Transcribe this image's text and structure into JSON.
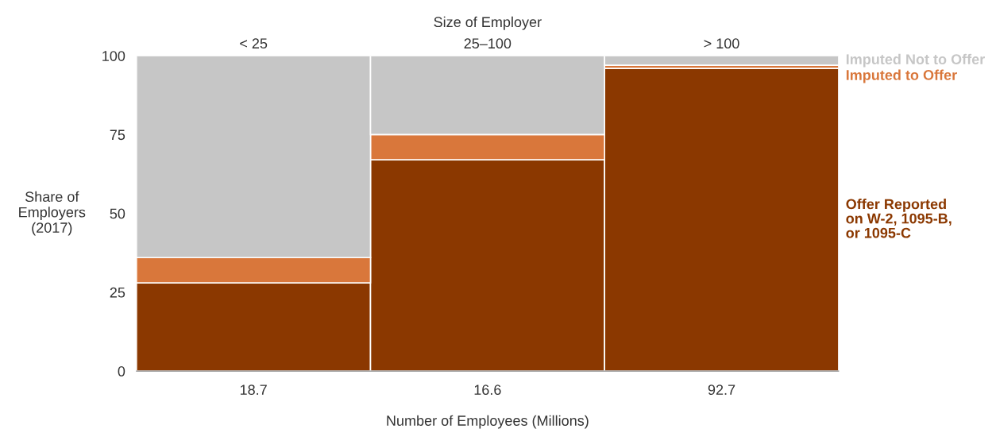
{
  "chart_data": {
    "type": "bar",
    "stacked": true,
    "x2label": "Size of Employer",
    "categories": [
      "< 25",
      "25–100",
      "> 100"
    ],
    "xlabel": "Number of Employees (Millions)",
    "ylabel": "Share of\nEmployers\n(2017)",
    "annotations": [
      "18.7",
      "16.6",
      "92.7"
    ],
    "ylim": [
      0,
      100
    ],
    "yticks": [
      0,
      25,
      50,
      75,
      100
    ],
    "series": [
      {
        "name": "Offer Reported\non W-2, 1095-B,\nor 1095-C",
        "color": "#8b3800",
        "values": [
          28,
          67,
          96
        ]
      },
      {
        "name": "Imputed to Offer",
        "color": "#d9773b",
        "values": [
          8,
          8,
          1
        ]
      },
      {
        "name": "Imputed Not to Offer",
        "color": "#c6c6c6",
        "values": [
          64,
          25,
          3
        ]
      }
    ]
  }
}
